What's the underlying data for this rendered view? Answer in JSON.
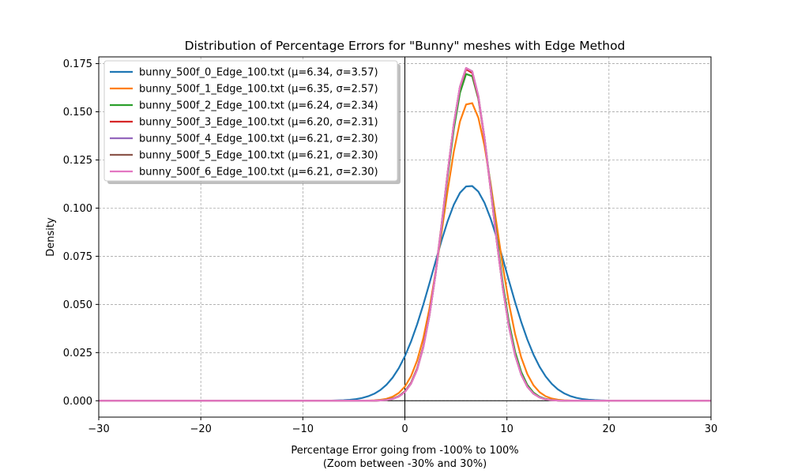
{
  "chart_data": {
    "type": "line",
    "title": "Distribution of Percentage Errors for \"Bunny\" meshes with Edge Method",
    "xlabel": "Percentage Error going from -100% to 100%",
    "xlabel_sub": "(Zoom between -30% and 30%)",
    "ylabel": "Density",
    "xlim": [
      -30,
      30
    ],
    "ylim": [
      -0.0085,
      0.1785
    ],
    "xticks": [
      -30,
      -20,
      -10,
      0,
      10,
      20,
      30
    ],
    "xtick_labels": [
      "−30",
      "−20",
      "−10",
      "0",
      "10",
      "20",
      "30"
    ],
    "yticks": [
      0,
      0.025,
      0.05,
      0.075,
      0.1,
      0.125,
      0.15,
      0.175
    ],
    "ytick_labels": [
      "0.000",
      "0.025",
      "0.050",
      "0.075",
      "0.100",
      "0.125",
      "0.150",
      "0.175"
    ],
    "grid": true,
    "grid_style": "dashed",
    "legend_position": "top-left",
    "reference_lines": {
      "vertical_x": 0,
      "horizontal_y": 0
    },
    "series": [
      {
        "name": "bunny_500f_0_Edge_100.txt (μ=6.34, σ=3.57)",
        "mu": 6.34,
        "sigma": 3.57,
        "color": "#1f77b4"
      },
      {
        "name": "bunny_500f_1_Edge_100.txt (μ=6.35, σ=2.57)",
        "mu": 6.35,
        "sigma": 2.57,
        "color": "#ff7f0e"
      },
      {
        "name": "bunny_500f_2_Edge_100.txt (μ=6.24, σ=2.34)",
        "mu": 6.24,
        "sigma": 2.34,
        "color": "#2ca02c"
      },
      {
        "name": "bunny_500f_3_Edge_100.txt (μ=6.20, σ=2.31)",
        "mu": 6.2,
        "sigma": 2.31,
        "color": "#d62728"
      },
      {
        "name": "bunny_500f_4_Edge_100.txt (μ=6.21, σ=2.30)",
        "mu": 6.21,
        "sigma": 2.3,
        "color": "#9467bd"
      },
      {
        "name": "bunny_500f_5_Edge_100.txt (μ=6.21, σ=2.30)",
        "mu": 6.21,
        "sigma": 2.3,
        "color": "#8c564b"
      },
      {
        "name": "bunny_500f_6_Edge_100.txt (μ=6.21, σ=2.30)",
        "mu": 6.21,
        "sigma": 2.3,
        "color": "#e377c2"
      }
    ]
  }
}
